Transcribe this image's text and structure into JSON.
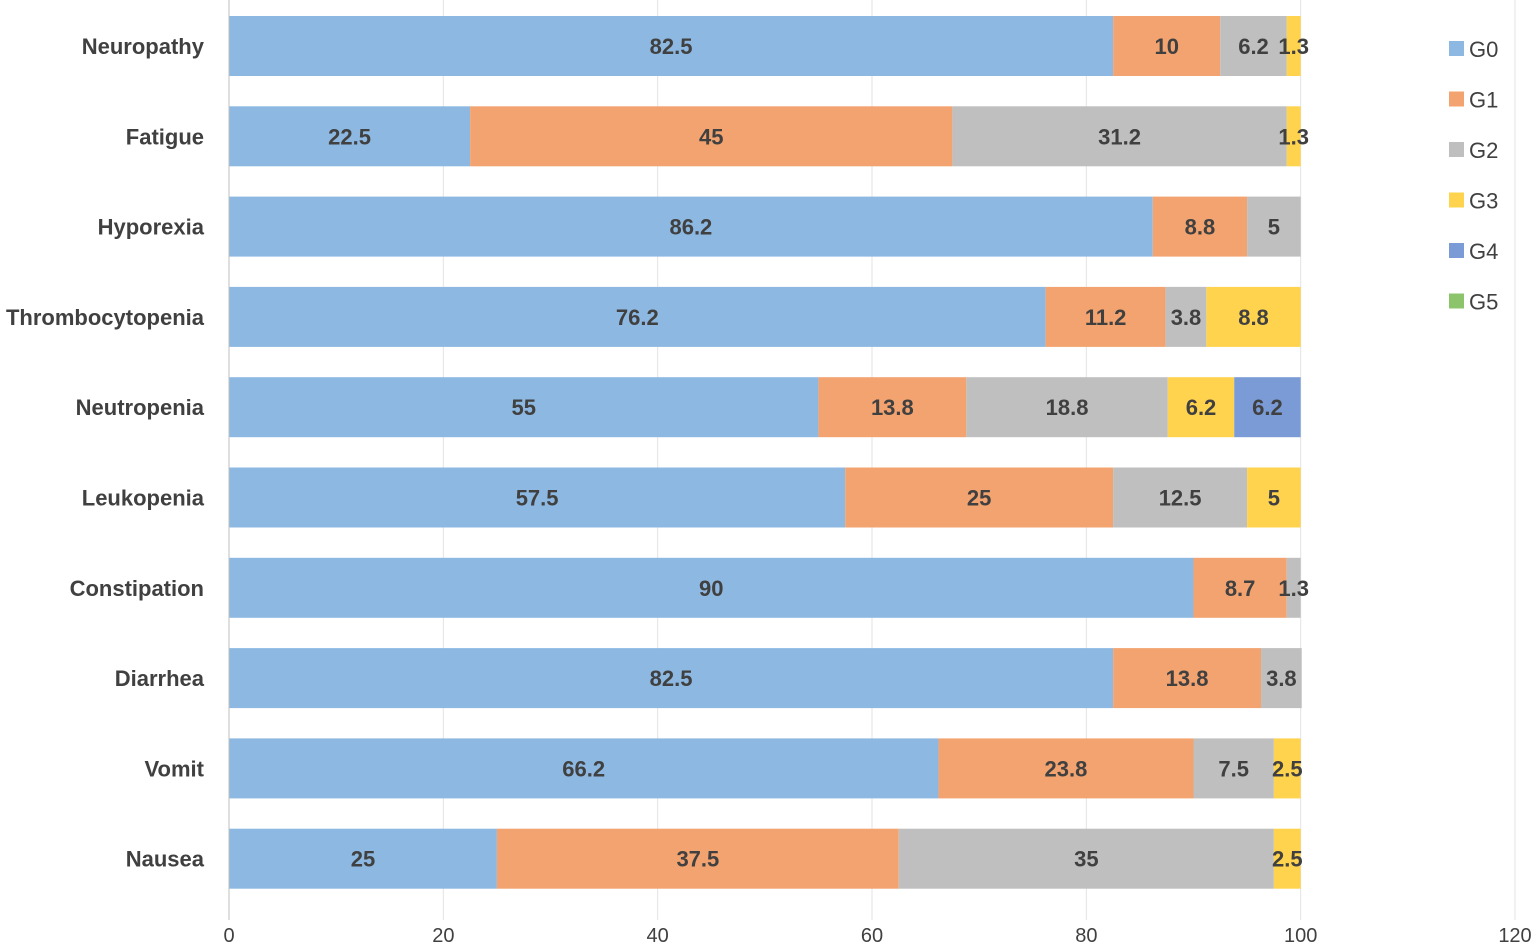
{
  "chart_data": {
    "type": "bar",
    "orientation": "horizontal",
    "stacked": true,
    "title": "",
    "xlabel": "",
    "ylabel": "",
    "xlim": [
      0,
      120
    ],
    "xticks": [
      0,
      20,
      40,
      60,
      80,
      100,
      120
    ],
    "grid": true,
    "legend_position": "top-right",
    "categories": [
      "Neuropathy",
      "Fatigue",
      "Hyporexia",
      "Thrombocytopenia",
      "Neutropenia",
      "Leukopenia",
      "Constipation",
      "Diarrhea",
      "Vomit",
      "Nausea"
    ],
    "series": [
      {
        "name": "G0",
        "color": "#8DB8E2",
        "values": [
          82.5,
          22.5,
          86.2,
          76.2,
          55,
          57.5,
          90,
          82.5,
          66.2,
          25
        ]
      },
      {
        "name": "G1",
        "color": "#F2A36F",
        "values": [
          10,
          45,
          8.8,
          11.2,
          13.8,
          25,
          8.7,
          13.8,
          23.8,
          37.5
        ]
      },
      {
        "name": "G2",
        "color": "#BFBFBF",
        "values": [
          6.2,
          31.2,
          5,
          3.8,
          18.8,
          12.5,
          1.3,
          3.8,
          7.5,
          35
        ]
      },
      {
        "name": "G3",
        "color": "#FFD34D",
        "values": [
          1.3,
          1.3,
          0,
          8.8,
          6.2,
          5,
          0,
          0,
          2.5,
          2.5
        ]
      },
      {
        "name": "G4",
        "color": "#7A9BD6",
        "values": [
          0,
          0,
          0,
          0,
          6.2,
          0,
          0,
          0,
          0,
          0
        ]
      },
      {
        "name": "G5",
        "color": "#8CC46C",
        "values": [
          0,
          0,
          0,
          0,
          0,
          0,
          0,
          0,
          0,
          0
        ]
      }
    ]
  }
}
